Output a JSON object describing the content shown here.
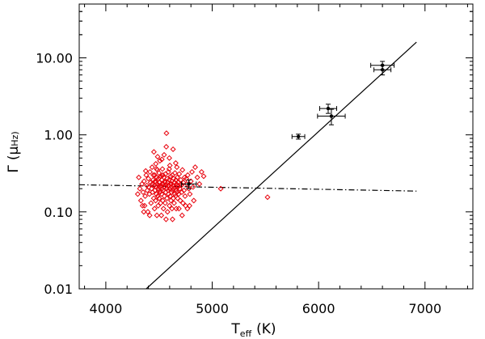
{
  "chart_data": {
    "type": "scatter",
    "xlabel": "T",
    "xlabel_subscript": "eff",
    "xlabel_unit": "(K)",
    "ylabel": "Γ",
    "ylabel_unit_prefix": "(",
    "ylabel_unit_mu": "μ",
    "ylabel_unit_rest": "Hz)",
    "xlim": [
      3750,
      7450
    ],
    "ylim": [
      0.01,
      50
    ],
    "y_scale": "log",
    "grid": false,
    "x_ticks": [
      4000,
      5000,
      6000,
      7000
    ],
    "x_tick_labels": [
      "4000",
      "5000",
      "6000",
      "7000"
    ],
    "y_ticks": [
      0.01,
      0.1,
      1,
      10
    ],
    "y_tick_labels": [
      "0.01",
      "0.10",
      "1.00",
      "10.00"
    ],
    "colors": {
      "axes": "#000000",
      "red_giants": "#e8000b",
      "main_sequence": "#000000"
    },
    "series": [
      {
        "marker": "open-diamond",
        "color": "#e8000b",
        "points": [
          [
            4300,
            0.17
          ],
          [
            4320,
            0.2
          ],
          [
            4330,
            0.14
          ],
          [
            4340,
            0.23
          ],
          [
            4350,
            0.18
          ],
          [
            4360,
            0.25
          ],
          [
            4365,
            0.12
          ],
          [
            4370,
            0.16
          ],
          [
            4380,
            0.3
          ],
          [
            4385,
            0.22
          ],
          [
            4390,
            0.19
          ],
          [
            4395,
            0.1
          ],
          [
            4400,
            0.27
          ],
          [
            4405,
            0.21
          ],
          [
            4410,
            0.17
          ],
          [
            4415,
            0.33
          ],
          [
            4420,
            0.24
          ],
          [
            4425,
            0.13
          ],
          [
            4430,
            0.2
          ],
          [
            4435,
            0.38
          ],
          [
            4440,
            0.18
          ],
          [
            4445,
            0.26
          ],
          [
            4450,
            0.15
          ],
          [
            4452,
            0.6
          ],
          [
            4455,
            0.22
          ],
          [
            4458,
            0.11
          ],
          [
            4460,
            0.3
          ],
          [
            4462,
            0.19
          ],
          [
            4465,
            0.25
          ],
          [
            4468,
            0.14
          ],
          [
            4470,
            0.42
          ],
          [
            4472,
            0.21
          ],
          [
            4475,
            0.17
          ],
          [
            4478,
            0.28
          ],
          [
            4480,
            0.09
          ],
          [
            4482,
            0.23
          ],
          [
            4485,
            0.35
          ],
          [
            4488,
            0.16
          ],
          [
            4490,
            0.2
          ],
          [
            4492,
            0.12
          ],
          [
            4495,
            0.27
          ],
          [
            4498,
            0.19
          ],
          [
            4500,
            0.32
          ],
          [
            4502,
            0.15
          ],
          [
            4505,
            0.24
          ],
          [
            4508,
            0.46
          ],
          [
            4510,
            0.18
          ],
          [
            4512,
            0.21
          ],
          [
            4515,
            0.13
          ],
          [
            4518,
            0.29
          ],
          [
            4520,
            0.22
          ],
          [
            4522,
            0.09
          ],
          [
            4525,
            0.17
          ],
          [
            4528,
            0.26
          ],
          [
            4530,
            0.2
          ],
          [
            4532,
            0.36
          ],
          [
            4535,
            0.14
          ],
          [
            4538,
            0.23
          ],
          [
            4540,
            0.19
          ],
          [
            4542,
            0.11
          ],
          [
            4545,
            0.28
          ],
          [
            4548,
            0.55
          ],
          [
            4550,
            0.16
          ],
          [
            4552,
            0.21
          ],
          [
            4555,
            0.25
          ],
          [
            4558,
            0.13
          ],
          [
            4560,
            0.31
          ],
          [
            4562,
            0.18
          ],
          [
            4565,
            0.22
          ],
          [
            4568,
            0.7
          ],
          [
            4570,
            1.05
          ],
          [
            4572,
            0.2
          ],
          [
            4575,
            0.15
          ],
          [
            4578,
            0.27
          ],
          [
            4580,
            0.1
          ],
          [
            4582,
            0.24
          ],
          [
            4585,
            0.19
          ],
          [
            4588,
            0.33
          ],
          [
            4590,
            0.17
          ],
          [
            4592,
            0.22
          ],
          [
            4595,
            0.26
          ],
          [
            4598,
            0.12
          ],
          [
            4600,
            0.2
          ],
          [
            4602,
            0.4
          ],
          [
            4605,
            0.16
          ],
          [
            4608,
            0.23
          ],
          [
            4610,
            0.29
          ],
          [
            4612,
            0.14
          ],
          [
            4615,
            0.21
          ],
          [
            4618,
            0.18
          ],
          [
            4620,
            0.25
          ],
          [
            4622,
            0.11
          ],
          [
            4625,
            0.3
          ],
          [
            4628,
            0.19
          ],
          [
            4630,
            0.22
          ],
          [
            4632,
            0.65
          ],
          [
            4635,
            0.15
          ],
          [
            4638,
            0.27
          ],
          [
            4640,
            0.2
          ],
          [
            4642,
            0.13
          ],
          [
            4645,
            0.24
          ],
          [
            4648,
            0.17
          ],
          [
            4650,
            0.32
          ],
          [
            4652,
            0.21
          ],
          [
            4655,
            0.16
          ],
          [
            4658,
            0.26
          ],
          [
            4660,
            0.19
          ],
          [
            4662,
            0.11
          ],
          [
            4665,
            0.23
          ],
          [
            4668,
            0.38
          ],
          [
            4670,
            0.18
          ],
          [
            4672,
            0.28
          ],
          [
            4675,
            0.15
          ],
          [
            4678,
            0.21
          ],
          [
            4680,
            0.24
          ],
          [
            4685,
            0.17
          ],
          [
            4690,
            0.31
          ],
          [
            4695,
            0.2
          ],
          [
            4700,
            0.14
          ],
          [
            4705,
            0.26
          ],
          [
            4710,
            0.22
          ],
          [
            4715,
            0.18
          ],
          [
            4720,
            0.35
          ],
          [
            4725,
            0.13
          ],
          [
            4730,
            0.24
          ],
          [
            4735,
            0.19
          ],
          [
            4740,
            0.28
          ],
          [
            4745,
            0.16
          ],
          [
            4750,
            0.12
          ],
          [
            4760,
            0.23
          ],
          [
            4770,
            0.3
          ],
          [
            4780,
            0.2
          ],
          [
            4790,
            0.17
          ],
          [
            4800,
            0.25
          ],
          [
            4810,
            0.33
          ],
          [
            4820,
            0.21
          ],
          [
            4840,
            0.38
          ],
          [
            4860,
            0.28
          ],
          [
            4880,
            0.23
          ],
          [
            4900,
            0.33
          ],
          [
            4920,
            0.29
          ],
          [
            5080,
            0.2
          ],
          [
            5520,
            0.155
          ],
          [
            4310,
            0.28
          ],
          [
            4345,
            0.12
          ],
          [
            4375,
            0.34
          ],
          [
            4412,
            0.09
          ],
          [
            4447,
            0.3
          ],
          [
            4477,
            0.36
          ],
          [
            4506,
            0.28
          ],
          [
            4536,
            0.3
          ],
          [
            4566,
            0.08
          ],
          [
            4596,
            0.36
          ],
          [
            4627,
            0.08
          ],
          [
            4657,
            0.43
          ],
          [
            4687,
            0.11
          ],
          [
            4717,
            0.09
          ],
          [
            4757,
            0.27
          ],
          [
            4787,
            0.12
          ],
          [
            4437,
            0.23
          ],
          [
            4467,
            0.24
          ],
          [
            4497,
            0.22
          ],
          [
            4527,
            0.23
          ],
          [
            4557,
            0.24
          ],
          [
            4587,
            0.22
          ],
          [
            4617,
            0.23
          ],
          [
            4647,
            0.24
          ],
          [
            4677,
            0.22
          ],
          [
            4707,
            0.23
          ],
          [
            4527,
            0.48
          ],
          [
            4597,
            0.5
          ],
          [
            4487,
            0.52
          ],
          [
            4357,
            0.1
          ],
          [
            4827,
            0.14
          ],
          [
            4767,
            0.11
          ]
        ]
      },
      {
        "marker": "filled-circle-errorbar",
        "color": "#000000",
        "points": [
          {
            "x": 4780,
            "y": 0.23,
            "xerr": 70,
            "yerr_lo": 0.03,
            "yerr_hi": 0.03
          },
          {
            "x": 5810,
            "y": 0.95,
            "xerr": 60,
            "yerr_lo": 0.07,
            "yerr_hi": 0.07
          },
          {
            "x": 6090,
            "y": 2.2,
            "xerr": 80,
            "yerr_lo": 0.3,
            "yerr_hi": 0.3
          },
          {
            "x": 6120,
            "y": 1.75,
            "xerr": 130,
            "yerr_lo": 0.4,
            "yerr_hi": 0.4
          },
          {
            "x": 6600,
            "y": 8.0,
            "xerr": 110,
            "yerr_lo": 1.0,
            "yerr_hi": 1.0
          },
          {
            "x": 6600,
            "y": 7.0,
            "xerr": 80,
            "yerr_lo": 1.0,
            "yerr_hi": 1.0
          }
        ]
      }
    ],
    "lines": [
      {
        "style": "solid",
        "color": "#000000",
        "x": [
          4380,
          6920
        ],
        "y": [
          0.01,
          16.0
        ]
      },
      {
        "style": "dash-dot",
        "color": "#000000",
        "x": [
          3750,
          6920
        ],
        "y": [
          0.225,
          0.186
        ]
      }
    ]
  }
}
